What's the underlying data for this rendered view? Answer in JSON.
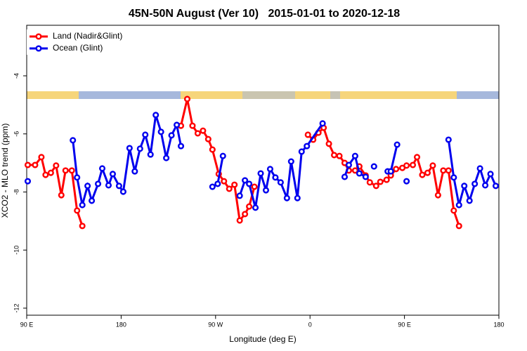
{
  "chart_data": {
    "type": "line",
    "title": "45N-50N August (Ver 10)   2015-01-01 to 2020-12-18",
    "x_label": "Longitude (deg E)",
    "y_label": "XCO2 - MLO trend (ppm)",
    "xlim": [
      90,
      540
    ],
    "xticks": [
      {
        "value": 90,
        "label": "90 E"
      },
      180,
      {
        "value": 270,
        "label": "90 W"
      },
      {
        "value": 360,
        "label": "0"
      },
      {
        "value": 450,
        "label": "90 E"
      },
      {
        "value": 540,
        "label": "180"
      }
    ],
    "ylim": [
      -12.25,
      -2.25
    ],
    "yticks": [
      -4,
      -6,
      -8,
      -10,
      -12
    ],
    "legend": "top-left",
    "series": [
      {
        "name": "Land (Nadir&Glint)",
        "color": "#ff0000",
        "x": [
          91,
          98,
          104,
          108,
          113,
          118,
          123,
          127,
          133,
          138,
          143,
          null,
          237,
          243,
          248,
          253,
          258,
          263,
          267,
          273,
          278,
          283,
          288,
          293,
          298,
          302,
          307,
          null,
          358,
          363,
          368,
          373,
          378,
          383,
          388,
          393,
          397,
          403,
          407,
          413,
          417,
          423,
          427,
          433,
          437,
          442,
          448,
          452,
          458,
          462,
          467,
          472,
          477,
          482,
          487,
          492,
          497,
          502
        ],
        "values": [
          -7.07,
          -7.07,
          -6.8,
          -7.41,
          -7.34,
          -7.09,
          -8.11,
          -7.26,
          -7.26,
          -8.64,
          -9.17,
          null,
          -5.72,
          -4.8,
          -5.72,
          -5.98,
          -5.89,
          -6.18,
          -6.54,
          -7.38,
          -7.63,
          -7.89,
          -7.75,
          -8.98,
          -8.76,
          -8.5,
          -7.82,
          null,
          -6.03,
          -6.2,
          -5.96,
          -5.79,
          -6.34,
          -6.73,
          -6.76,
          -7.0,
          -7.26,
          -7.26,
          -7.12,
          -7.43,
          -7.67,
          -7.79,
          -7.65,
          -7.58,
          -7.43,
          -7.21,
          -7.17,
          -7.09,
          -7.07,
          -6.8,
          -7.41,
          -7.34,
          -7.09,
          -8.11,
          -7.26,
          -7.26,
          -8.64,
          -9.17
        ]
      },
      {
        "name": "Ocean (Glint)",
        "color": "#0000ee",
        "x": [
          91,
          null,
          134,
          138,
          143,
          148,
          152,
          158,
          162,
          168,
          172,
          178,
          182,
          188,
          193,
          198,
          203,
          208,
          213,
          218,
          223,
          228,
          233,
          237,
          null,
          267,
          272,
          277,
          null,
          293,
          298,
          302,
          308,
          313,
          318,
          322,
          327,
          332,
          338,
          342,
          348,
          352,
          357,
          372,
          null,
          393,
          397,
          403,
          407,
          413,
          null,
          421,
          null,
          434,
          437,
          443,
          null,
          452,
          null,
          492,
          497,
          502,
          507,
          512,
          517,
          522,
          527,
          532,
          537
        ],
        "values": [
          -7.63,
          null,
          -6.22,
          -7.5,
          -8.45,
          -7.79,
          -8.3,
          -7.72,
          -7.19,
          -7.77,
          -7.38,
          -7.79,
          -7.99,
          -6.49,
          -7.29,
          -6.51,
          -6.03,
          -6.71,
          -5.35,
          -5.93,
          -6.83,
          -6.05,
          -5.69,
          -6.42,
          null,
          -7.82,
          -7.72,
          -6.76,
          null,
          -8.13,
          -7.6,
          -7.72,
          -8.54,
          -7.36,
          -7.94,
          -7.21,
          -7.5,
          -7.67,
          -8.21,
          -6.95,
          -8.21,
          -6.61,
          -6.42,
          -5.64,
          null,
          -7.48,
          -7.07,
          -6.76,
          -7.36,
          -7.48,
          null,
          -7.12,
          null,
          -7.29,
          -7.29,
          -6.37,
          null,
          -7.63,
          null,
          -6.2,
          -7.5,
          -8.45,
          -7.79,
          -8.3,
          -7.72,
          -7.19,
          -7.77,
          -7.38,
          -7.79
        ]
      }
    ]
  }
}
